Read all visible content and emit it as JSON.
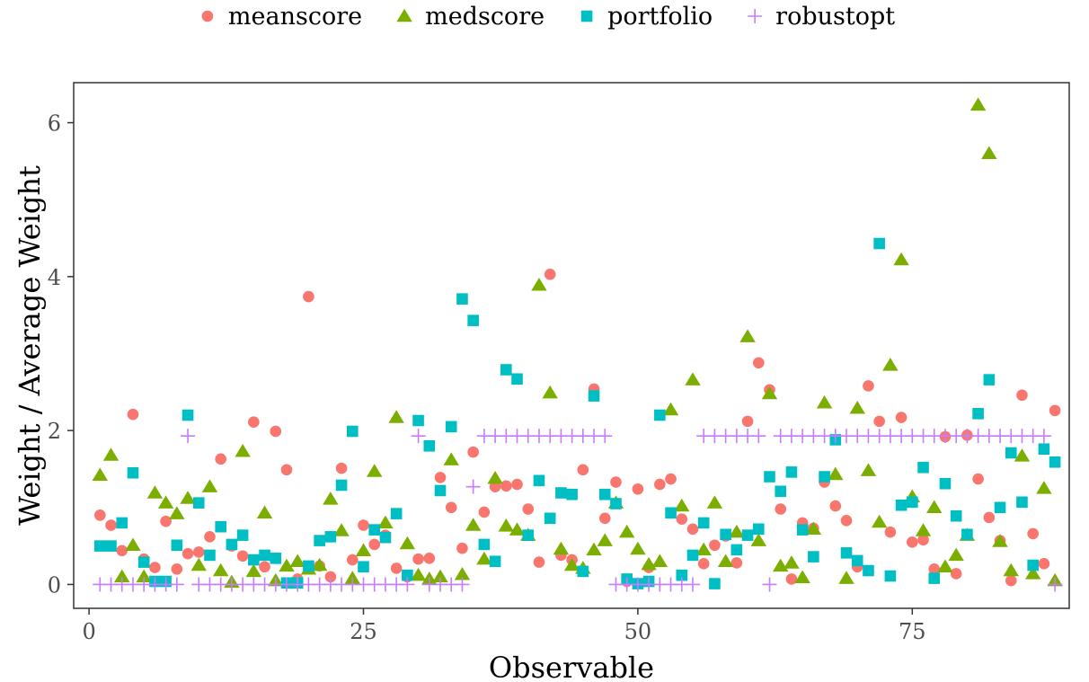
{
  "chart_data": {
    "type": "scatter",
    "title": "",
    "xlabel": "Observable",
    "ylabel": "Weight / Average Weight",
    "xlim": [
      -1.4,
      89.3
    ],
    "ylim": [
      -0.31,
      6.52
    ],
    "x_ticks": [
      0,
      25,
      50,
      75
    ],
    "y_ticks": [
      0,
      2,
      4,
      6
    ],
    "grid": false,
    "legend_position": "top",
    "series": [
      {
        "name": "meanscore",
        "color": "#F8766D",
        "marker": "circle",
        "x": [
          1,
          2,
          3,
          4,
          5,
          6,
          7,
          8,
          9,
          10,
          11,
          12,
          13,
          14,
          15,
          16,
          17,
          18,
          19,
          20,
          21,
          22,
          23,
          24,
          25,
          26,
          27,
          28,
          29,
          30,
          31,
          32,
          33,
          34,
          35,
          36,
          37,
          38,
          39,
          40,
          41,
          42,
          43,
          44,
          45,
          46,
          47,
          48,
          49,
          50,
          51,
          52,
          53,
          54,
          55,
          56,
          57,
          58,
          59,
          60,
          61,
          62,
          63,
          64,
          65,
          66,
          67,
          68,
          69,
          70,
          71,
          72,
          73,
          74,
          75,
          76,
          77,
          78,
          79,
          80,
          81,
          82,
          83,
          84,
          85,
          86,
          87,
          88
        ],
        "y": [
          0.9,
          0.77,
          0.44,
          2.21,
          0.33,
          0.22,
          0.82,
          0.2,
          0.4,
          0.42,
          0.62,
          1.63,
          0.5,
          0.37,
          2.11,
          0.23,
          1.99,
          1.49,
          0.07,
          3.74,
          0.24,
          0.1,
          1.51,
          0.32,
          0.77,
          0.52,
          0.64,
          0.21,
          0.1,
          0.33,
          0.34,
          1.39,
          1.0,
          0.47,
          1.72,
          0.94,
          1.27,
          1.28,
          1.3,
          0.98,
          0.29,
          4.03,
          0.38,
          0.32,
          1.49,
          2.54,
          0.86,
          1.33,
          0.04,
          1.24,
          0.22,
          1.3,
          1.37,
          0.85,
          0.72,
          0.27,
          0.51,
          0.63,
          0.28,
          2.12,
          2.88,
          2.53,
          0.98,
          0.07,
          0.8,
          0.73,
          1.33,
          1.02,
          0.83,
          0.23,
          2.58,
          2.12,
          0.68,
          2.17,
          0.55,
          0.58,
          0.2,
          1.92,
          0.14,
          1.94,
          1.37,
          0.87,
          0.57,
          0.05,
          2.46,
          0.66,
          0.27,
          2.26
        ]
      },
      {
        "name": "medscore",
        "color": "#7CAE00",
        "marker": "triangle",
        "x": [
          1,
          2,
          3,
          4,
          5,
          6,
          7,
          8,
          9,
          10,
          11,
          12,
          13,
          14,
          15,
          16,
          17,
          18,
          19,
          20,
          21,
          22,
          23,
          24,
          25,
          26,
          27,
          28,
          29,
          30,
          31,
          32,
          33,
          34,
          35,
          36,
          37,
          38,
          39,
          40,
          41,
          42,
          43,
          44,
          45,
          46,
          47,
          48,
          49,
          50,
          51,
          52,
          53,
          54,
          55,
          56,
          57,
          58,
          59,
          60,
          61,
          62,
          63,
          64,
          65,
          66,
          67,
          68,
          69,
          70,
          71,
          72,
          73,
          74,
          75,
          76,
          77,
          78,
          79,
          80,
          81,
          82,
          83,
          84,
          85,
          86,
          87,
          88
        ],
        "y": [
          1.42,
          1.68,
          0.1,
          0.51,
          0.1,
          1.19,
          1.06,
          0.92,
          1.12,
          0.25,
          1.27,
          0.18,
          0.03,
          1.73,
          0.17,
          0.93,
          0.05,
          0.24,
          0.3,
          0.2,
          0.25,
          1.11,
          0.7,
          0.08,
          0.44,
          1.47,
          0.8,
          2.17,
          0.53,
          0.12,
          0.07,
          0.1,
          1.62,
          0.13,
          0.77,
          0.33,
          1.38,
          0.76,
          0.71,
          0.64,
          3.89,
          2.49,
          0.46,
          0.25,
          0.21,
          0.45,
          0.57,
          1.06,
          0.68,
          0.46,
          0.26,
          0.3,
          2.27,
          1.02,
          2.66,
          0.45,
          1.06,
          0.3,
          0.68,
          3.22,
          0.57,
          2.48,
          0.24,
          0.28,
          0.09,
          0.72,
          2.36,
          1.43,
          0.08,
          2.29,
          1.48,
          0.81,
          2.85,
          4.22,
          1.14,
          0.7,
          1.0,
          0.23,
          0.38,
          0.64,
          6.23,
          5.6,
          0.56,
          0.18,
          1.67,
          0.14,
          1.25,
          0.05
        ]
      },
      {
        "name": "portfolio",
        "color": "#00BFC4",
        "marker": "square",
        "x": [
          1,
          2,
          3,
          4,
          5,
          6,
          7,
          8,
          9,
          10,
          11,
          12,
          13,
          14,
          15,
          16,
          17,
          18,
          19,
          20,
          21,
          22,
          23,
          24,
          25,
          26,
          27,
          28,
          29,
          30,
          31,
          32,
          33,
          34,
          35,
          36,
          37,
          38,
          39,
          40,
          41,
          42,
          43,
          44,
          45,
          46,
          47,
          48,
          49,
          50,
          51,
          52,
          53,
          54,
          55,
          56,
          57,
          58,
          59,
          60,
          61,
          62,
          63,
          64,
          65,
          66,
          67,
          68,
          69,
          70,
          71,
          72,
          73,
          74,
          75,
          76,
          77,
          78,
          79,
          80,
          81,
          82,
          83,
          84,
          85,
          86,
          87,
          88
        ],
        "y": [
          0.5,
          0.5,
          0.8,
          1.45,
          0.29,
          0.04,
          0.04,
          0.51,
          2.2,
          1.06,
          0.38,
          0.75,
          0.52,
          0.64,
          0.32,
          0.38,
          0.34,
          0.02,
          0.02,
          0.24,
          0.57,
          0.62,
          1.29,
          1.99,
          0.23,
          0.71,
          0.61,
          0.92,
          0.12,
          2.13,
          1.8,
          1.22,
          2.05,
          3.71,
          3.43,
          0.52,
          0.3,
          2.79,
          2.67,
          0.64,
          1.35,
          0.86,
          1.19,
          1.17,
          0.17,
          2.45,
          1.17,
          1.05,
          0.07,
          0.01,
          0.04,
          2.2,
          0.93,
          0.12,
          0.38,
          0.8,
          0.01,
          0.65,
          0.45,
          0.64,
          0.72,
          1.4,
          1.21,
          1.46,
          0.71,
          0.36,
          1.4,
          1.88,
          0.41,
          0.31,
          0.18,
          4.43,
          0.11,
          1.03,
          1.07,
          1.52,
          0.08,
          1.31,
          0.89,
          0.65,
          2.22,
          2.66,
          1.0,
          1.71,
          1.07,
          0.25,
          1.76,
          1.59
        ]
      },
      {
        "name": "robustopt",
        "color": "#C77CFF",
        "marker": "plus",
        "x": [
          1,
          2,
          3,
          4,
          5,
          6,
          7,
          8,
          9,
          10,
          11,
          12,
          13,
          14,
          15,
          16,
          17,
          18,
          19,
          20,
          21,
          22,
          23,
          24,
          25,
          26,
          27,
          28,
          29,
          30,
          31,
          32,
          33,
          34,
          35,
          36,
          37,
          38,
          39,
          40,
          41,
          42,
          43,
          44,
          45,
          46,
          47,
          48,
          49,
          50,
          51,
          52,
          53,
          54,
          55,
          56,
          57,
          58,
          59,
          60,
          61,
          62,
          63,
          64,
          65,
          66,
          67,
          68,
          69,
          70,
          71,
          72,
          73,
          74,
          75,
          76,
          77,
          78,
          79,
          80,
          81,
          82,
          83,
          84,
          85,
          86,
          87,
          88
        ],
        "y": [
          0,
          0,
          0,
          0,
          0,
          0,
          0,
          0,
          1.93,
          0,
          0,
          0,
          0,
          0,
          0,
          0,
          0,
          0,
          0,
          0,
          0,
          0,
          0,
          0,
          0,
          0,
          0,
          0,
          0,
          1.93,
          0,
          0,
          0,
          0,
          1.27,
          1.93,
          1.93,
          1.93,
          1.93,
          1.93,
          1.93,
          1.93,
          1.93,
          1.93,
          1.93,
          1.93,
          1.93,
          0,
          0,
          0,
          0,
          0,
          0,
          0,
          0,
          1.93,
          1.93,
          1.93,
          1.93,
          1.93,
          1.93,
          0,
          1.93,
          1.93,
          1.93,
          1.93,
          1.93,
          1.93,
          1.93,
          1.93,
          1.93,
          1.93,
          1.93,
          1.93,
          1.93,
          1.93,
          1.93,
          1.93,
          1.93,
          1.93,
          1.93,
          1.93,
          1.93,
          1.93,
          1.93,
          1.93,
          1.93,
          0
        ]
      }
    ]
  }
}
